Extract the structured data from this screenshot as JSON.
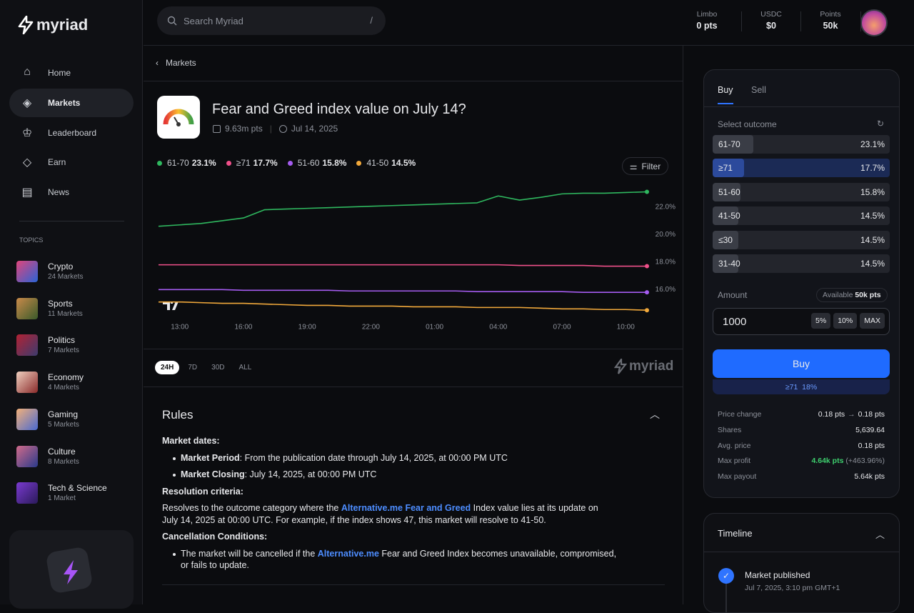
{
  "sidebar": {
    "brand": "myriad",
    "nav": [
      "Home",
      "Markets",
      "Leaderboard",
      "Earn",
      "News"
    ],
    "topics_label": "TOPICS",
    "topics": [
      {
        "name": "Crypto",
        "count": "24 Markets"
      },
      {
        "name": "Sports",
        "count": "11 Markets"
      },
      {
        "name": "Politics",
        "count": "7 Markets"
      },
      {
        "name": "Economy",
        "count": "4 Markets"
      },
      {
        "name": "Gaming",
        "count": "5 Markets"
      },
      {
        "name": "Culture",
        "count": "8 Markets"
      },
      {
        "name": "Tech & Science",
        "count": "1 Market"
      }
    ]
  },
  "header": {
    "search": "Search Myriad",
    "shortcut": "/",
    "stats": [
      {
        "label": "Limbo",
        "value": "0 pts"
      },
      {
        "label": "USDC",
        "value": "$0"
      },
      {
        "label": "Points",
        "value": "50k"
      }
    ]
  },
  "breadcrumb": "Markets",
  "market": {
    "title": "Fear and Greed index value on July 14?",
    "volume": "9.63m pts",
    "date": "Jul 14, 2025",
    "filter": "Filter",
    "ranges": [
      "24H",
      "7D",
      "30D",
      "ALL"
    ],
    "watermark": "myriad"
  },
  "chart_data": {
    "type": "line",
    "categories": [
      null,
      "13:00",
      null,
      null,
      "16:00",
      null,
      null,
      "19:00",
      null,
      null,
      "22:00",
      null,
      null,
      "01:00",
      null,
      null,
      "04:00",
      null,
      null,
      "07:00",
      null,
      null,
      "10:00",
      null
    ],
    "ylim": [
      14.2,
      23.8
    ],
    "yticks": [
      {
        "value": 16,
        "label": "16.0%"
      },
      {
        "value": 18,
        "label": "18.0%"
      },
      {
        "value": 20,
        "label": "20.0%"
      },
      {
        "value": 22,
        "label": "22.0%"
      }
    ],
    "series": [
      {
        "name": "61-70",
        "color": "#2fb85f",
        "legend_label": "23.1%",
        "values": [
          20.6,
          20.7,
          20.8,
          21.0,
          21.2,
          21.8,
          21.85,
          21.9,
          21.95,
          22.0,
          22.05,
          22.1,
          22.15,
          22.2,
          22.25,
          22.3,
          22.8,
          22.5,
          22.7,
          22.95,
          23.0,
          23.0,
          23.05,
          23.1
        ]
      },
      {
        "name": "≥71",
        "color": "#f0508a",
        "legend_label": "17.7%",
        "values": [
          17.8,
          17.8,
          17.8,
          17.8,
          17.8,
          17.8,
          17.8,
          17.8,
          17.8,
          17.8,
          17.8,
          17.8,
          17.8,
          17.8,
          17.8,
          17.8,
          17.8,
          17.75,
          17.75,
          17.75,
          17.75,
          17.7,
          17.7,
          17.7
        ]
      },
      {
        "name": "51-60",
        "color": "#a55cf0",
        "legend_label": "15.8%",
        "values": [
          16.0,
          16.0,
          16.0,
          16.0,
          15.95,
          15.95,
          15.95,
          15.95,
          15.95,
          15.9,
          15.9,
          15.9,
          15.9,
          15.9,
          15.9,
          15.85,
          15.85,
          15.85,
          15.85,
          15.85,
          15.8,
          15.8,
          15.8,
          15.8
        ]
      },
      {
        "name": "41-50",
        "color": "#f2a93b",
        "legend_label": "14.5%",
        "values": [
          15.1,
          15.1,
          15.05,
          15.0,
          15.0,
          14.95,
          14.9,
          14.85,
          14.85,
          14.8,
          14.8,
          14.8,
          14.75,
          14.75,
          14.75,
          14.7,
          14.7,
          14.7,
          14.65,
          14.6,
          14.6,
          14.55,
          14.55,
          14.5
        ]
      }
    ]
  },
  "rules": {
    "title": "Rules",
    "dates_heading": "Market dates:",
    "period_label": "Market Period",
    "period_text": ": From the publication date through July 14, 2025, at 00:00 PM UTC",
    "closing_label": "Market Closing",
    "closing_text": ": July 14, 2025, at 00:00 PM UTC",
    "resolution_heading": "Resolution criteria:",
    "resolution_pre": "Resolves to the outcome category where the ",
    "resolution_link": "Alternative.me Fear and Greed",
    "resolution_post": " Index value lies at its update on July 14, 2025 at 00:00 UTC. For example, if the index shows 47, this market will resolve to 41-50.",
    "cancel_heading": "Cancellation Conditions:",
    "cancel_pre": "The market will be cancelled if the ",
    "cancel_link": "Alternative.me",
    "cancel_post": " Fear and Greed Index becomes unavailable, compromised, or fails to update."
  },
  "trade": {
    "tabs": [
      "Buy",
      "Sell"
    ],
    "select_label": "Select outcome",
    "outcomes": [
      {
        "name": "61-70",
        "value": 23.1,
        "label": "23.1%"
      },
      {
        "name": "≥71",
        "value": 17.7,
        "label": "17.7%"
      },
      {
        "name": "51-60",
        "value": 15.8,
        "label": "15.8%"
      },
      {
        "name": "41-50",
        "value": 14.5,
        "label": "14.5%"
      },
      {
        "name": "≤30",
        "value": 14.5,
        "label": "14.5%"
      },
      {
        "name": "31-40",
        "value": 14.5,
        "label": "14.5%"
      }
    ],
    "amount_label": "Amount",
    "available_label": "Available",
    "available_value": "50k pts",
    "amount": "1000",
    "chips": [
      "5%",
      "10%",
      "MAX"
    ],
    "button": "Buy",
    "selected_name": "≥71",
    "selected_price": "18%",
    "details": [
      {
        "label": "Price change",
        "value": "0.18 pts",
        "value_to": "0.18 pts"
      },
      {
        "label": "Shares",
        "value": "5,639.64"
      },
      {
        "label": "Avg. price",
        "value": "0.18 pts"
      },
      {
        "label": "Max profit",
        "value": "4.64k pts",
        "extra": "(+463.96%)"
      },
      {
        "label": "Max payout",
        "value": "5.64k pts"
      }
    ]
  },
  "timeline": {
    "title": "Timeline",
    "events": [
      {
        "title": "Market published",
        "date": "Jul 7, 2025, 3:10 pm GMT+1"
      }
    ]
  }
}
